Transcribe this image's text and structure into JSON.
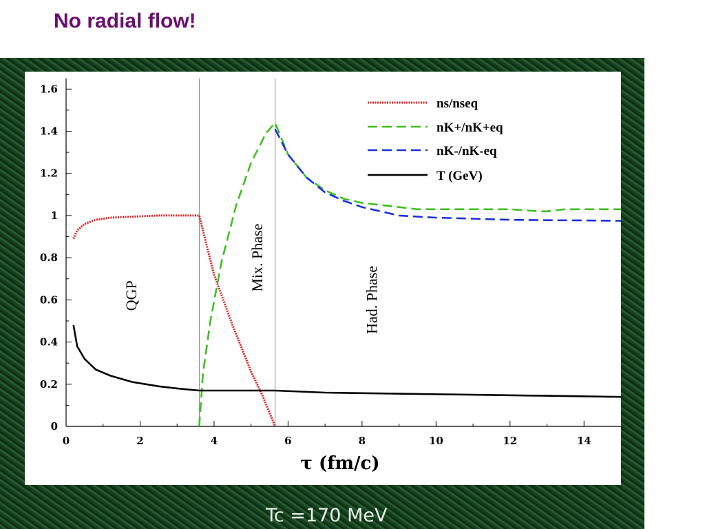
{
  "slide": {
    "title": "No radial flow!",
    "footer": "Tc =170 MeV"
  },
  "chart_data": {
    "type": "line",
    "xlabel": "τ (fm/c)",
    "ylabel": "",
    "xlim": [
      0,
      15
    ],
    "ylim": [
      0,
      1.65
    ],
    "xticks": [
      0,
      2,
      4,
      6,
      8,
      10,
      12,
      14
    ],
    "yticks": [
      0,
      0.2,
      0.4,
      0.6,
      0.8,
      1,
      1.2,
      1.4,
      1.6
    ],
    "xtick_labels": [
      "0",
      "2",
      "4",
      "6",
      "8",
      "10",
      "12",
      "14"
    ],
    "ytick_labels": [
      "0",
      "0.2",
      "0.4",
      "0.6",
      "0.8",
      "1",
      "1.2",
      "1.4",
      "1.6"
    ],
    "grid": false,
    "vlines": [
      3.6,
      5.65
    ],
    "annotations": [
      {
        "text": "QGP",
        "x": 1.9,
        "y": 0.62
      },
      {
        "text": "Mix. Phase",
        "x": 5.3,
        "y": 0.8
      },
      {
        "text": "Had. Phase",
        "x": 8.4,
        "y": 0.6
      }
    ],
    "legend_position": "top-right",
    "series": [
      {
        "name": "ns/nseq",
        "color": "#e02020",
        "style": "dotted",
        "x": [
          0.2,
          0.3,
          0.5,
          0.8,
          1.2,
          1.8,
          2.5,
          3.0,
          3.6,
          4.0,
          4.5,
          5.0,
          5.3,
          5.65
        ],
        "y": [
          0.89,
          0.93,
          0.96,
          0.98,
          0.99,
          0.995,
          1.0,
          1.0,
          1.0,
          0.72,
          0.48,
          0.26,
          0.15,
          0.0
        ]
      },
      {
        "name": "nK+/nK+eq",
        "color": "#3ec020",
        "style": "dashed",
        "x": [
          3.6,
          3.7,
          3.9,
          4.2,
          4.6,
          5.0,
          5.4,
          5.65,
          6.0,
          6.5,
          7.0,
          7.5,
          8.0,
          8.5,
          9.0,
          9.5,
          10,
          11,
          12,
          12.8,
          13.0,
          13.5,
          14,
          15
        ],
        "y": [
          0.0,
          0.25,
          0.5,
          0.78,
          1.05,
          1.25,
          1.39,
          1.44,
          1.29,
          1.18,
          1.12,
          1.08,
          1.06,
          1.05,
          1.04,
          1.03,
          1.03,
          1.03,
          1.03,
          1.02,
          1.02,
          1.03,
          1.03,
          1.03
        ]
      },
      {
        "name": "nK-/nK-eq",
        "color": "#1a30e0",
        "style": "dashed",
        "x": [
          5.65,
          6.0,
          6.5,
          7.0,
          7.5,
          8.0,
          8.5,
          9.0,
          9.5,
          10,
          11,
          12,
          13,
          14,
          15
        ],
        "y": [
          1.41,
          1.29,
          1.18,
          1.11,
          1.07,
          1.04,
          1.02,
          1.0,
          0.995,
          0.99,
          0.985,
          0.98,
          0.978,
          0.977,
          0.975
        ]
      },
      {
        "name": "T (GeV)",
        "color": "#000000",
        "style": "solid",
        "x": [
          0.2,
          0.3,
          0.5,
          0.8,
          1.2,
          1.8,
          2.5,
          3.0,
          3.6,
          4.5,
          5.65,
          7,
          9,
          11,
          13,
          15
        ],
        "y": [
          0.48,
          0.38,
          0.32,
          0.27,
          0.24,
          0.21,
          0.19,
          0.18,
          0.17,
          0.17,
          0.17,
          0.16,
          0.155,
          0.15,
          0.145,
          0.14
        ]
      }
    ]
  }
}
